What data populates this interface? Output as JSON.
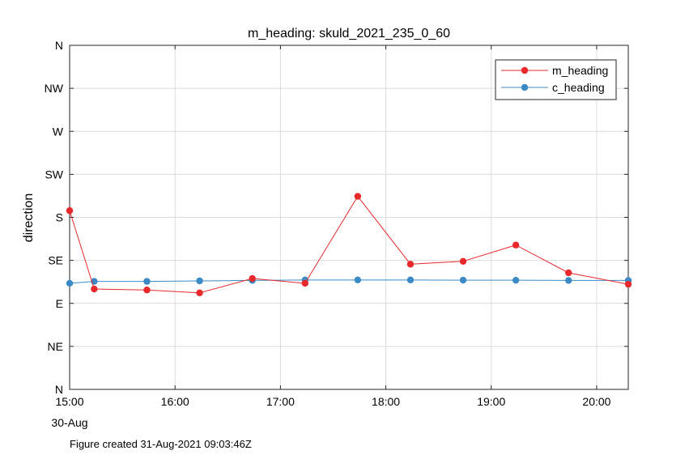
{
  "chart_data": {
    "type": "line",
    "title": "m_heading: skuld_2021_235_0_60",
    "xlabel": "",
    "ylabel": "direction",
    "x_date_label": "30-Aug",
    "x_ticks": [
      "15:00",
      "16:00",
      "17:00",
      "18:00",
      "19:00",
      "20:00"
    ],
    "xlim": [
      "15:00",
      "20:18"
    ],
    "y_ticks": [
      "N",
      "NE",
      "E",
      "SE",
      "S",
      "SW",
      "W",
      "NW",
      "N"
    ],
    "ylim": [
      0,
      360
    ],
    "grid": true,
    "legend_position": "top-right",
    "series": [
      {
        "name": "m_heading",
        "color": "#e8282b",
        "points": [
          {
            "x": "15:00",
            "y": 187
          },
          {
            "x": "15:14",
            "y": 105
          },
          {
            "x": "15:44",
            "y": 104
          },
          {
            "x": "16:14",
            "y": 101
          },
          {
            "x": "16:44",
            "y": 116
          },
          {
            "x": "17:14",
            "y": 111
          },
          {
            "x": "17:44",
            "y": 202
          },
          {
            "x": "18:14",
            "y": 131
          },
          {
            "x": "18:44",
            "y": 134
          },
          {
            "x": "19:14",
            "y": 151
          },
          {
            "x": "19:44",
            "y": 122
          },
          {
            "x": "20:18",
            "y": 110
          }
        ]
      },
      {
        "name": "c_heading",
        "color": "#3c8ac5",
        "points": [
          {
            "x": "15:00",
            "y": 111
          },
          {
            "x": "15:14",
            "y": 113
          },
          {
            "x": "15:44",
            "y": 113
          },
          {
            "x": "16:14",
            "y": 113.5
          },
          {
            "x": "16:44",
            "y": 114
          },
          {
            "x": "17:14",
            "y": 114.5
          },
          {
            "x": "17:44",
            "y": 114.5
          },
          {
            "x": "18:14",
            "y": 114.5
          },
          {
            "x": "18:44",
            "y": 114.3
          },
          {
            "x": "19:14",
            "y": 114.2
          },
          {
            "x": "19:44",
            "y": 114
          },
          {
            "x": "20:18",
            "y": 114
          }
        ]
      }
    ]
  },
  "footer": {
    "note": "Figure created 31-Aug-2021 09:03:46Z"
  }
}
